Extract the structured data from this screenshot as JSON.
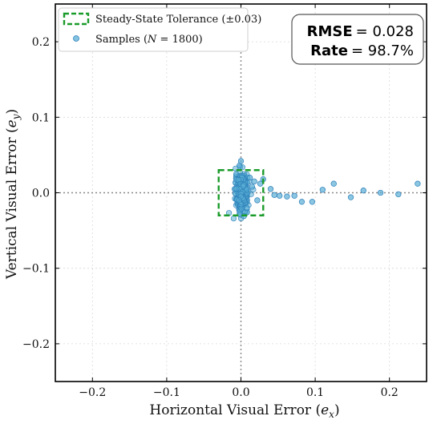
{
  "chart_data": {
    "type": "scatter",
    "title": "",
    "xlabel": "Horizontal Visual Error",
    "xlabel_symbol": "e",
    "xlabel_sub": "x",
    "ylabel": "Vertical Visual Error",
    "ylabel_symbol": "e",
    "ylabel_sub": "y",
    "xlim": [
      -0.25,
      0.25
    ],
    "ylim": [
      -0.25,
      0.25
    ],
    "xticks": [
      -0.2,
      -0.1,
      0.0,
      0.1,
      0.2
    ],
    "yticks": [
      -0.2,
      -0.1,
      0.0,
      0.1,
      0.2
    ],
    "xtick_labels": [
      "−0.2",
      "−0.1",
      "0.0",
      "0.1",
      "0.2"
    ],
    "ytick_labels": [
      "−0.2",
      "−0.1",
      "0.0",
      "0.1",
      "0.2"
    ],
    "grid": true,
    "legend_position": "top-left",
    "legend": {
      "tolerance_label": "Steady-State Tolerance (±0.03)",
      "samples_label_prefix": "Samples (",
      "samples_label_var": "N",
      "samples_label_suffix": " = 1800)"
    },
    "tolerance_box": {
      "x0": -0.03,
      "x1": 0.03,
      "y0": -0.03,
      "y1": 0.03,
      "color": "#1a9b2a"
    },
    "metrics": [
      {
        "name": "RMSE",
        "value": "= 0.028"
      },
      {
        "name": "Rate",
        "value": "= 98.7%"
      }
    ],
    "series": [
      {
        "name": "Samples",
        "color": "#5aaed6",
        "edge_color": "#2c7fb8",
        "cluster": {
          "n": 420,
          "x_center": 0.001,
          "x_sd": 0.004,
          "y_sd": 0.011,
          "y_clip": 0.034
        },
        "outliers": [
          {
            "x": 0.0,
            "y": 0.042
          },
          {
            "x": -0.002,
            "y": 0.036
          },
          {
            "x": 0.004,
            "y": -0.031
          },
          {
            "x": 0.012,
            "y": 0.02
          },
          {
            "x": 0.015,
            "y": 0.008
          },
          {
            "x": 0.018,
            "y": 0.015
          },
          {
            "x": 0.022,
            "y": -0.01
          },
          {
            "x": 0.026,
            "y": 0.012
          },
          {
            "x": 0.03,
            "y": 0.018
          },
          {
            "x": 0.04,
            "y": 0.005
          },
          {
            "x": 0.045,
            "y": -0.003
          },
          {
            "x": 0.052,
            "y": -0.004
          },
          {
            "x": 0.062,
            "y": -0.005
          },
          {
            "x": 0.072,
            "y": -0.004
          },
          {
            "x": 0.082,
            "y": -0.012
          },
          {
            "x": 0.096,
            "y": -0.012
          },
          {
            "x": 0.11,
            "y": 0.004
          },
          {
            "x": 0.125,
            "y": 0.012
          },
          {
            "x": 0.148,
            "y": -0.006
          },
          {
            "x": 0.165,
            "y": 0.003
          },
          {
            "x": 0.188,
            "y": 0.0
          },
          {
            "x": 0.212,
            "y": -0.002
          },
          {
            "x": 0.238,
            "y": 0.012
          }
        ]
      }
    ]
  }
}
